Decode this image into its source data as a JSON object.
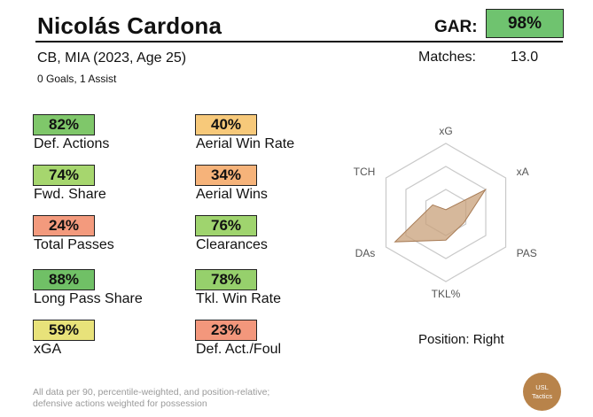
{
  "header": {
    "player_name": "Nicolás Cardona",
    "gar_label": "GAR:",
    "gar_value": "98%",
    "gar_color": "#6fc36f",
    "subtitle": "CB, MIA (2023, Age 25)",
    "goals_assists": "0 Goals,  1 Assist",
    "matches_label": "Matches:",
    "matches_value": "13.0"
  },
  "stats": [
    {
      "value": "82%",
      "label": "Def. Actions",
      "color": "#7fc76a"
    },
    {
      "value": "40%",
      "label": "Aerial Win Rate",
      "color": "#f7c97a"
    },
    {
      "value": "74%",
      "label": "Fwd. Share",
      "color": "#a6d66e"
    },
    {
      "value": "34%",
      "label": "Aerial Wins",
      "color": "#f6b37a"
    },
    {
      "value": "24%",
      "label": "Total Passes",
      "color": "#f39a7d"
    },
    {
      "value": "76%",
      "label": "Clearances",
      "color": "#9fd46e"
    },
    {
      "value": "88%",
      "label": "Long Pass Share",
      "color": "#70c066"
    },
    {
      "value": "78%",
      "label": "Tkl. Win Rate",
      "color": "#96d06c"
    },
    {
      "value": "59%",
      "label": "xGA",
      "color": "#e8e27a"
    },
    {
      "value": "23%",
      "label": "Def. Act./Foul",
      "color": "#f3977c"
    }
  ],
  "radar": {
    "axes": [
      "xG",
      "xA",
      "PAS",
      "TKL%",
      "DAs",
      "TCH"
    ],
    "values": [
      0.04,
      0.66,
      0.3,
      0.4,
      0.85,
      0.22
    ],
    "fill_color": "#c8a07a",
    "stroke_color": "#a87c56"
  },
  "position": "Position: Right",
  "footnote": {
    "line1": "All data per 90, percentile-weighted, and position-relative;",
    "line2": "defensive actions weighted for possession"
  },
  "logo": {
    "line1": "USL",
    "line2": "Tactics",
    "color": "#b8834a"
  }
}
